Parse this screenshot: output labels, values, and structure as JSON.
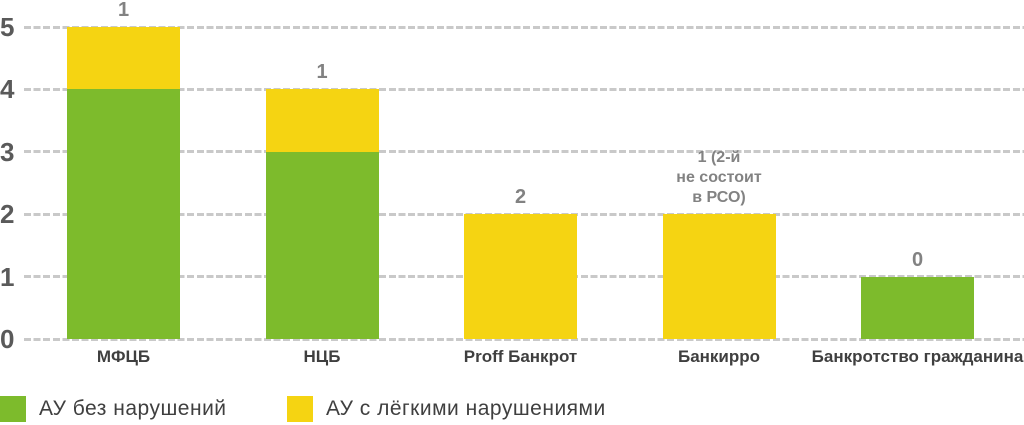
{
  "chart_data": {
    "type": "bar",
    "stacked": true,
    "title": "",
    "xlabel": "",
    "ylabel": "",
    "ylim": [
      0,
      5
    ],
    "y_ticks": [
      0,
      1,
      2,
      3,
      4,
      5
    ],
    "grid": "horizontal-dashed",
    "legend_position": "bottom-left",
    "categories": [
      "МФЦБ",
      "НЦБ",
      "Proff Банкрот",
      "Банкирро",
      "Банкротство гражданина"
    ],
    "series": [
      {
        "name": "АУ без нарушений",
        "color": "#7DBB2C",
        "values": [
          4,
          3,
          0,
          0,
          1
        ]
      },
      {
        "name": "АУ с лёгкими нарушениями",
        "color": "#F5D412",
        "values": [
          1,
          1,
          2,
          2,
          0
        ]
      }
    ],
    "totals": [
      5,
      4,
      2,
      2,
      1
    ],
    "bar_labels": [
      "1",
      "1",
      "2",
      "1 (2-й\nне состоит\nв РСО)",
      "0"
    ]
  },
  "legend": {
    "items": [
      {
        "label": "АУ без нарушений",
        "color": "#7DBB2C"
      },
      {
        "label": "АУ с лёгкими нарушениями",
        "color": "#F5D412"
      }
    ]
  },
  "colors": {
    "background": "#FFFFFF",
    "gridline": "#C9C9C9",
    "y_tick_label": "#5A5A5A",
    "bar_value_label": "#828282",
    "x_axis_label": "#3F3F3F",
    "legend_text": "#3F3F3F"
  }
}
